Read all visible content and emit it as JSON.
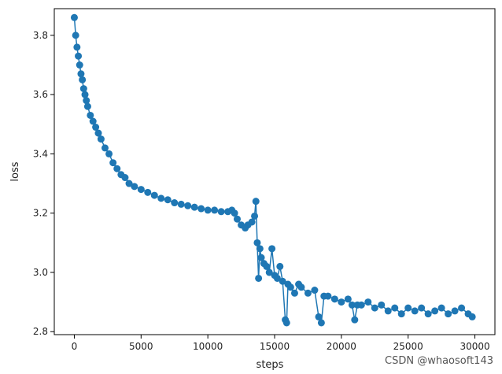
{
  "chart_data": {
    "type": "line",
    "title": "",
    "xlabel": "steps",
    "ylabel": "loss",
    "xlim": [
      -1500,
      31500
    ],
    "ylim": [
      2.79,
      3.89
    ],
    "x_ticks": [
      0,
      5000,
      10000,
      15000,
      20000,
      25000,
      30000
    ],
    "y_ticks": [
      2.8,
      3.0,
      3.2,
      3.4,
      3.6,
      3.8
    ],
    "grid": false,
    "legend": "none",
    "marker": "circle",
    "color": "#1f77b4",
    "series": [
      {
        "x": [
          0,
          100,
          200,
          300,
          400,
          500,
          600,
          700,
          800,
          900,
          1000,
          1200,
          1400,
          1600,
          1800,
          2000,
          2300,
          2600,
          2900,
          3200,
          3500,
          3800,
          4100,
          4500,
          5000,
          5500,
          6000,
          6500,
          7000,
          7500,
          8000,
          8500,
          9000,
          9500,
          10000,
          10500,
          11000,
          11500,
          11800,
          12000,
          12200,
          12500,
          12800,
          13000,
          13300,
          13500,
          13600,
          13700,
          13800,
          13900,
          14000,
          14200,
          14400,
          14600,
          14800,
          15000,
          15200,
          15400,
          15600,
          15800,
          15900,
          16000,
          16200,
          16500,
          16800,
          17000,
          17500,
          18000,
          18300,
          18500,
          18700,
          19000,
          19500,
          20000,
          20500,
          20800,
          21000,
          21200,
          21500,
          22000,
          22500,
          23000,
          23500,
          24000,
          24500,
          25000,
          25500,
          26000,
          26500,
          27000,
          27500,
          28000,
          28500,
          29000,
          29500,
          29800
        ],
        "y": [
          3.86,
          3.8,
          3.76,
          3.73,
          3.7,
          3.67,
          3.65,
          3.62,
          3.6,
          3.58,
          3.56,
          3.53,
          3.51,
          3.49,
          3.47,
          3.45,
          3.42,
          3.4,
          3.37,
          3.35,
          3.33,
          3.32,
          3.3,
          3.29,
          3.28,
          3.27,
          3.26,
          3.25,
          3.245,
          3.235,
          3.23,
          3.225,
          3.22,
          3.215,
          3.21,
          3.21,
          3.205,
          3.205,
          3.21,
          3.2,
          3.18,
          3.16,
          3.15,
          3.16,
          3.17,
          3.19,
          3.24,
          3.1,
          2.98,
          3.08,
          3.05,
          3.03,
          3.02,
          3.0,
          3.08,
          2.99,
          2.98,
          3.02,
          2.97,
          2.84,
          2.83,
          2.96,
          2.95,
          2.93,
          2.96,
          2.95,
          2.93,
          2.94,
          2.85,
          2.83,
          2.92,
          2.92,
          2.91,
          2.9,
          2.91,
          2.89,
          2.84,
          2.89,
          2.89,
          2.9,
          2.88,
          2.89,
          2.87,
          2.88,
          2.86,
          2.88,
          2.87,
          2.88,
          2.86,
          2.87,
          2.88,
          2.86,
          2.87,
          2.88,
          2.86,
          2.85
        ]
      }
    ]
  },
  "watermark": "CSDN @whaosoft143"
}
